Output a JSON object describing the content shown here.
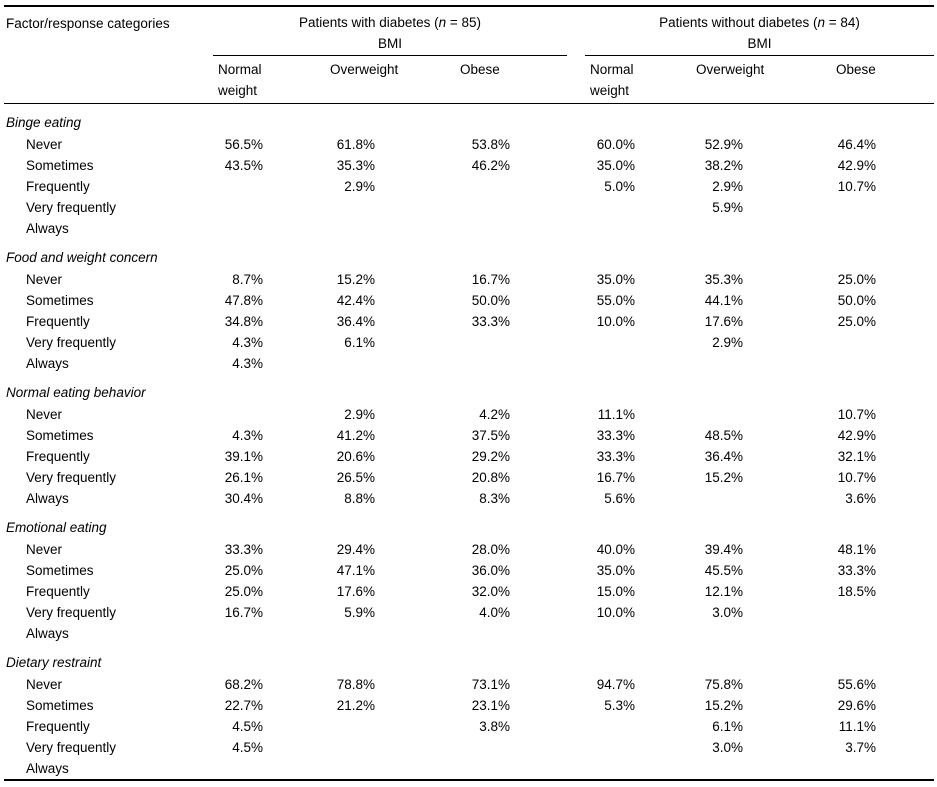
{
  "page": {
    "background": "#ffffff",
    "text_color": "#000000",
    "rule_color": "#000000"
  },
  "table": {
    "corner_header": "Factor/response categories",
    "groups": [
      {
        "title": {
          "prefix": "Patients with diabetes (",
          "italic": "n",
          "suffix": " = 85)"
        },
        "subtitle": "BMI",
        "columns": [
          "Normal weight",
          "Overweight",
          "Obese"
        ]
      },
      {
        "title": {
          "prefix": "Patients without diabetes (",
          "italic": "n",
          "suffix": " = 84)"
        },
        "subtitle": "BMI",
        "columns": [
          "Normal weight",
          "Overweight",
          "Obese"
        ]
      }
    ],
    "response_labels": [
      "Never",
      "Sometimes",
      "Frequently",
      "Very frequently",
      "Always"
    ],
    "sections": [
      {
        "label": "Binge eating",
        "values": [
          [
            "56.5%",
            "61.8%",
            "53.8%",
            "60.0%",
            "52.9%",
            "46.4%"
          ],
          [
            "43.5%",
            "35.3%",
            "46.2%",
            "35.0%",
            "38.2%",
            "42.9%"
          ],
          [
            "",
            "2.9%",
            "",
            "5.0%",
            "2.9%",
            "10.7%"
          ],
          [
            "",
            "",
            "",
            "",
            "5.9%",
            ""
          ],
          [
            "",
            "",
            "",
            "",
            "",
            ""
          ]
        ]
      },
      {
        "label": "Food and weight concern",
        "values": [
          [
            "8.7%",
            "15.2%",
            "16.7%",
            "35.0%",
            "35.3%",
            "25.0%"
          ],
          [
            "47.8%",
            "42.4%",
            "50.0%",
            "55.0%",
            "44.1%",
            "50.0%"
          ],
          [
            "34.8%",
            "36.4%",
            "33.3%",
            "10.0%",
            "17.6%",
            "25.0%"
          ],
          [
            "4.3%",
            "6.1%",
            "",
            "",
            "2.9%",
            ""
          ],
          [
            "4.3%",
            "",
            "",
            "",
            "",
            ""
          ]
        ]
      },
      {
        "label": "Normal eating behavior",
        "values": [
          [
            "",
            "2.9%",
            "4.2%",
            "11.1%",
            "",
            "10.7%"
          ],
          [
            "4.3%",
            "41.2%",
            "37.5%",
            "33.3%",
            "48.5%",
            "42.9%"
          ],
          [
            "39.1%",
            "20.6%",
            "29.2%",
            "33.3%",
            "36.4%",
            "32.1%"
          ],
          [
            "26.1%",
            "26.5%",
            "20.8%",
            "16.7%",
            "15.2%",
            "10.7%"
          ],
          [
            "30.4%",
            "8.8%",
            "8.3%",
            "5.6%",
            "",
            "3.6%"
          ]
        ]
      },
      {
        "label": "Emotional eating",
        "values": [
          [
            "33.3%",
            "29.4%",
            "28.0%",
            "40.0%",
            "39.4%",
            "48.1%"
          ],
          [
            "25.0%",
            "47.1%",
            "36.0%",
            "35.0%",
            "45.5%",
            "33.3%"
          ],
          [
            "25.0%",
            "17.6%",
            "32.0%",
            "15.0%",
            "12.1%",
            "18.5%"
          ],
          [
            "16.7%",
            "5.9%",
            "4.0%",
            "10.0%",
            "3.0%",
            ""
          ],
          [
            "",
            "",
            "",
            "",
            "",
            ""
          ]
        ]
      },
      {
        "label": "Dietary restraint",
        "values": [
          [
            "68.2%",
            "78.8%",
            "73.1%",
            "94.7%",
            "75.8%",
            "55.6%"
          ],
          [
            "22.7%",
            "21.2%",
            "23.1%",
            "5.3%",
            "15.2%",
            "29.6%"
          ],
          [
            "4.5%",
            "",
            "3.8%",
            "",
            "6.1%",
            "11.1%"
          ],
          [
            "4.5%",
            "",
            "",
            "",
            "3.0%",
            "3.7%"
          ],
          [
            "",
            "",
            "",
            "",
            "",
            ""
          ]
        ]
      }
    ]
  }
}
